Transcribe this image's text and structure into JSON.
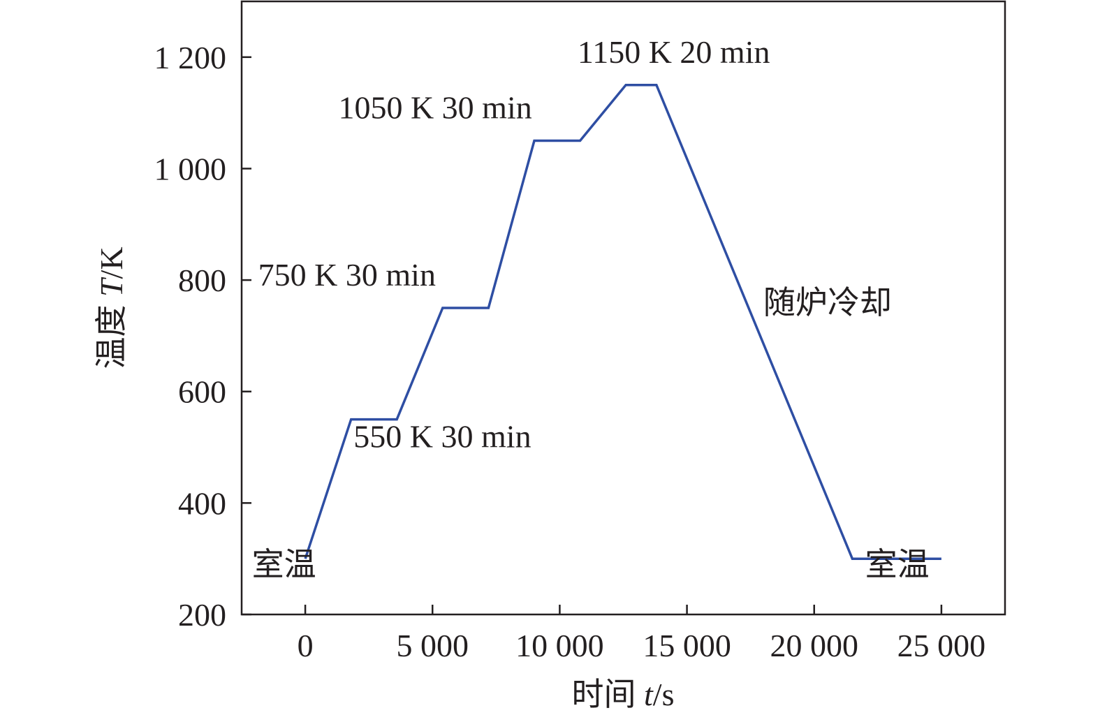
{
  "chart_data": {
    "type": "line",
    "xlabel": {
      "prefix": "时间 ",
      "var": "t",
      "suffix": "/s"
    },
    "ylabel": {
      "prefix": "温度 ",
      "var": "T",
      "suffix": "/K"
    },
    "xlim": [
      -2500,
      27500
    ],
    "ylim": [
      200,
      1300
    ],
    "x_ticks": [
      {
        "value": 0,
        "label": "0"
      },
      {
        "value": 5000,
        "label": "5 000"
      },
      {
        "value": 10000,
        "label": "10 000"
      },
      {
        "value": 15000,
        "label": "15 000"
      },
      {
        "value": 20000,
        "label": "20 000"
      },
      {
        "value": 25000,
        "label": "25 000"
      }
    ],
    "y_ticks": [
      {
        "value": 200,
        "label": "200"
      },
      {
        "value": 400,
        "label": "400"
      },
      {
        "value": 600,
        "label": "600"
      },
      {
        "value": 800,
        "label": "800"
      },
      {
        "value": 1000,
        "label": "1 000"
      },
      {
        "value": 1200,
        "label": "1 200"
      }
    ],
    "series": [
      {
        "color": "#2e4ea3",
        "x": [
          0,
          1800,
          3600,
          5400,
          7200,
          9000,
          10800,
          12600,
          13800,
          21500,
          25000
        ],
        "y": [
          300,
          550,
          550,
          750,
          750,
          1050,
          1050,
          1150,
          1150,
          300,
          300
        ]
      }
    ],
    "annotations": [
      {
        "text": "室温",
        "x": -2100,
        "y": 270
      },
      {
        "text": "550 K  30 min",
        "x": 1900,
        "y": 500
      },
      {
        "text": "750 K  30 min",
        "x": -1850,
        "y": 790
      },
      {
        "text": "1050 K  30 min",
        "x": 1300,
        "y": 1090
      },
      {
        "text": "1150 K  20 min",
        "x": 10700,
        "y": 1190
      },
      {
        "text": "随炉冷却",
        "x": 18000,
        "y": 740
      },
      {
        "text": "室温",
        "x": 22000,
        "y": 270
      }
    ]
  }
}
